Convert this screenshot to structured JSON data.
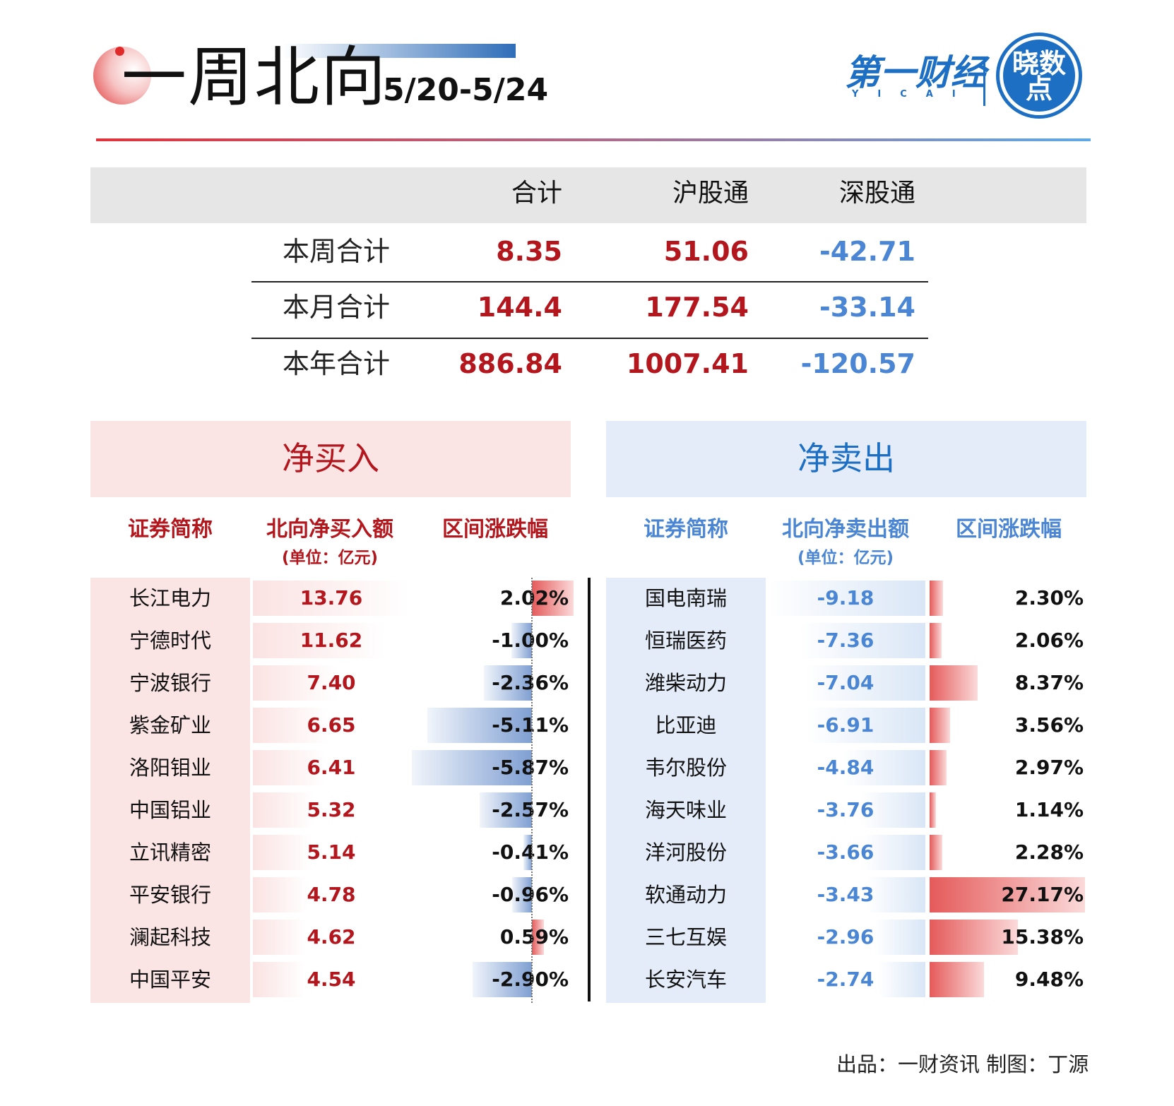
{
  "header": {
    "title": "一周北向",
    "date_range": "5/20-5/24",
    "brand": "第一财经",
    "brand_sub": "YICAI",
    "seal_text": "晓数点"
  },
  "summary": {
    "columns": [
      "合计",
      "沪股通",
      "深股通"
    ],
    "rows": [
      {
        "label": "本周合计",
        "total": "8.35",
        "sh": "51.06",
        "sz": "-42.71"
      },
      {
        "label": "本月合计",
        "total": "144.4",
        "sh": "177.54",
        "sz": "-33.14"
      },
      {
        "label": "本年合计",
        "total": "886.84",
        "sh": "1007.41",
        "sz": "-120.57"
      }
    ]
  },
  "net_buy": {
    "title": "净买入",
    "col_name": "证券简称",
    "col_amount": "北向净买入额",
    "col_unit": "(单位：亿元)",
    "col_change": "区间涨跌幅",
    "rows": [
      {
        "name": "长江电力",
        "amount": "13.76",
        "change": "2.02%",
        "amount_val": 13.76,
        "change_val": 2.02
      },
      {
        "name": "宁德时代",
        "amount": "11.62",
        "change": "-1.00%",
        "amount_val": 11.62,
        "change_val": -1.0
      },
      {
        "name": "宁波银行",
        "amount": "7.40",
        "change": "-2.36%",
        "amount_val": 7.4,
        "change_val": -2.36
      },
      {
        "name": "紫金矿业",
        "amount": "6.65",
        "change": "-5.11%",
        "amount_val": 6.65,
        "change_val": -5.11
      },
      {
        "name": "洛阳钼业",
        "amount": "6.41",
        "change": "-5.87%",
        "amount_val": 6.41,
        "change_val": -5.87
      },
      {
        "name": "中国铝业",
        "amount": "5.32",
        "change": "-2.57%",
        "amount_val": 5.32,
        "change_val": -2.57
      },
      {
        "name": "立讯精密",
        "amount": "5.14",
        "change": "-0.41%",
        "amount_val": 5.14,
        "change_val": -0.41
      },
      {
        "name": "平安银行",
        "amount": "4.78",
        "change": "-0.96%",
        "amount_val": 4.78,
        "change_val": -0.96
      },
      {
        "name": "澜起科技",
        "amount": "4.62",
        "change": "0.59%",
        "amount_val": 4.62,
        "change_val": 0.59
      },
      {
        "name": "中国平安",
        "amount": "4.54",
        "change": "-2.90%",
        "amount_val": 4.54,
        "change_val": -2.9
      }
    ]
  },
  "net_sell": {
    "title": "净卖出",
    "col_name": "证券简称",
    "col_amount": "北向净卖出额",
    "col_unit": "(单位：亿元)",
    "col_change": "区间涨跌幅",
    "rows": [
      {
        "name": "国电南瑞",
        "amount": "-9.18",
        "change": "2.30%",
        "amount_val": -9.18,
        "change_val": 2.3
      },
      {
        "name": "恒瑞医药",
        "amount": "-7.36",
        "change": "2.06%",
        "amount_val": -7.36,
        "change_val": 2.06
      },
      {
        "name": "潍柴动力",
        "amount": "-7.04",
        "change": "8.37%",
        "amount_val": -7.04,
        "change_val": 8.37
      },
      {
        "name": "比亚迪",
        "amount": "-6.91",
        "change": "3.56%",
        "amount_val": -6.91,
        "change_val": 3.56
      },
      {
        "name": "韦尔股份",
        "amount": "-4.84",
        "change": "2.97%",
        "amount_val": -4.84,
        "change_val": 2.97
      },
      {
        "name": "海天味业",
        "amount": "-3.76",
        "change": "1.14%",
        "amount_val": -3.76,
        "change_val": 1.14
      },
      {
        "name": "洋河股份",
        "amount": "-3.66",
        "change": "2.28%",
        "amount_val": -3.66,
        "change_val": 2.28
      },
      {
        "name": "软通动力",
        "amount": "-3.43",
        "change": "27.17%",
        "amount_val": -3.43,
        "change_val": 27.17
      },
      {
        "name": "三七互娱",
        "amount": "-2.96",
        "change": "15.38%",
        "amount_val": -2.96,
        "change_val": 15.38
      },
      {
        "name": "长安汽车",
        "amount": "-2.74",
        "change": "9.48%",
        "amount_val": -2.74,
        "change_val": 9.48
      }
    ]
  },
  "colors": {
    "buy_red": "#b3161c",
    "sell_blue": "#4a86d4",
    "brand_blue": "#1d6fc4"
  },
  "footer": "出品：一财资讯  制图：丁源"
}
